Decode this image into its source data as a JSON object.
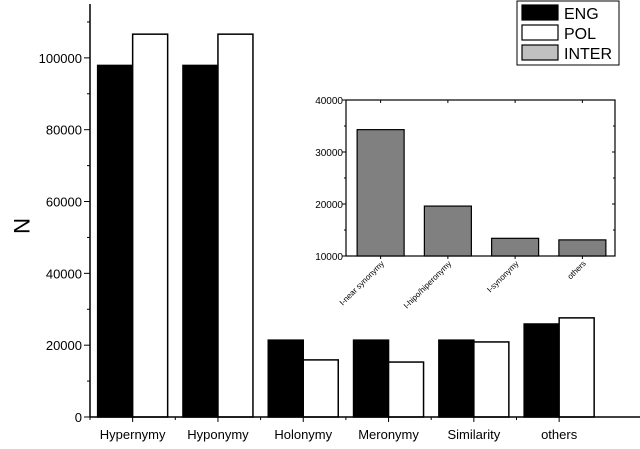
{
  "chart_data": [
    {
      "type": "bar",
      "title": "",
      "xlabel": "",
      "ylabel": "N",
      "ylim": [
        0,
        115000
      ],
      "yticks": [
        "0",
        "20000",
        "40000",
        "60000",
        "80000",
        "100000"
      ],
      "categories": [
        "Hypernymy",
        "Hyponymy",
        "Holonymy",
        "Meronymy",
        "Similarity",
        "others"
      ],
      "series": [
        {
          "name": "ENG",
          "color": "#000000",
          "values": [
            97900,
            97900,
            21400,
            21400,
            21400,
            25900
          ]
        },
        {
          "name": "POL",
          "color": "#ffffff",
          "values": [
            106600,
            106600,
            15900,
            15300,
            20900,
            27600
          ]
        }
      ],
      "legend": {
        "placement": "top-right",
        "entries": [
          {
            "name": "ENG",
            "color": "#000000"
          },
          {
            "name": "POL",
            "color": "#ffffff"
          },
          {
            "name": "INTER",
            "color": "#c0c0c0"
          }
        ]
      },
      "grid": false
    },
    {
      "type": "bar",
      "title": "",
      "series_name": "INTER",
      "ylim": [
        10000,
        40000
      ],
      "yticks": [
        "10000",
        "20000",
        "30000",
        "40000"
      ],
      "categories": [
        "I-near synonymy",
        "I-hipo/hiperonymy",
        "I-synonymy",
        "others"
      ],
      "values": [
        34300,
        19600,
        13400,
        13100
      ],
      "color": "#808080",
      "grid": false
    }
  ]
}
